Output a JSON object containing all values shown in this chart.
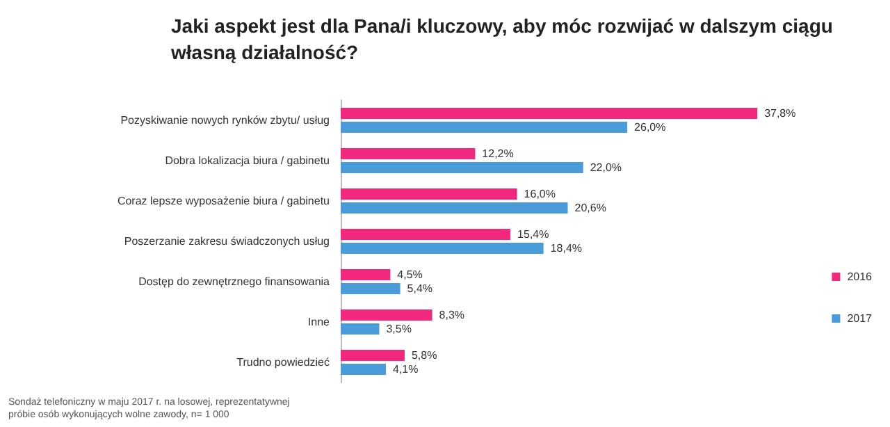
{
  "chart_data": {
    "type": "bar",
    "orientation": "horizontal",
    "title": "Jaki aspekt jest dla Pana/i kluczowy, aby móc rozwijać w dalszym ciągu\nwłasną działalność?",
    "categories": [
      "Pozyskiwanie nowych rynków zbytu/ usług",
      "Dobra lokalizacja biura / gabinetu",
      "Coraz lepsze wyposażenie biura / gabinetu",
      "Poszerzanie zakresu świadczonych usług",
      "Dostęp do zewnętrznego finansowania",
      "Inne",
      "Trudno powiedzieć"
    ],
    "series": [
      {
        "name": "2016",
        "color": "#f2277e",
        "values": [
          37.8,
          12.2,
          16.0,
          15.4,
          4.5,
          8.3,
          5.8
        ],
        "value_labels": [
          "37,8%",
          "12,2%",
          "16,0%",
          "15,4%",
          "4,5%",
          "8,3%",
          "5,8%"
        ]
      },
      {
        "name": "2017",
        "color": "#4a9bd9",
        "values": [
          26.0,
          22.0,
          20.6,
          18.4,
          5.4,
          3.5,
          4.1
        ],
        "value_labels": [
          "26,0%",
          "22,0%",
          "20,6%",
          "18,4%",
          "5,4%",
          "3,5%",
          "4,1%"
        ]
      }
    ],
    "legend": "right",
    "annotations": [
      "Sondaż telefoniczny w maju 2017 r. na losowej, reprezentatywnej\npróbie osób wykonujących wolne zawody, n= 1 000"
    ]
  }
}
